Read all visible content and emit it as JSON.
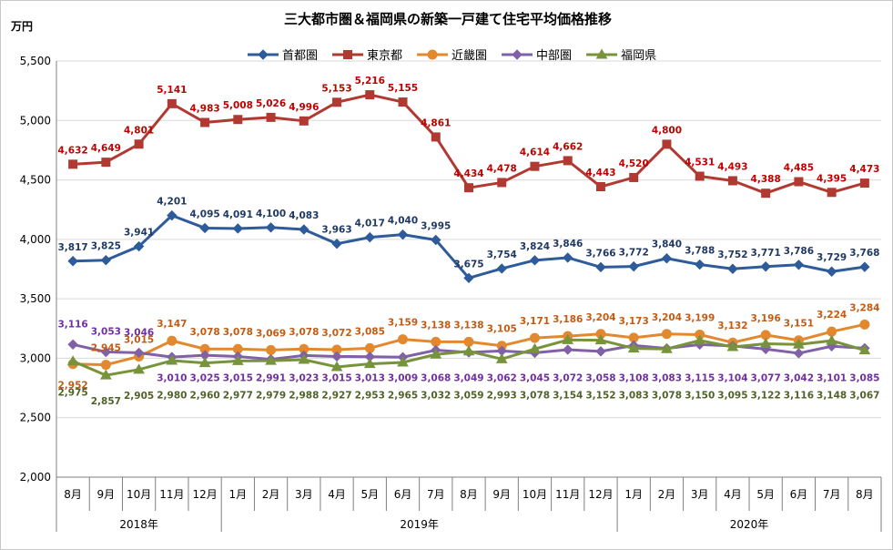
{
  "chart_data": {
    "type": "line",
    "title": "三大都市圏＆福岡県の新築一戸建て住宅平均価格推移",
    "ylabel": "万円",
    "xlabel": "",
    "ylim": [
      2000,
      5500
    ],
    "yticks": [
      "2,000",
      "2,500",
      "3,000",
      "3,500",
      "4,000",
      "4,500",
      "5,000",
      "5,500"
    ],
    "categories": [
      "8月",
      "9月",
      "10月",
      "11月",
      "12月",
      "1月",
      "2月",
      "3月",
      "4月",
      "5月",
      "6月",
      "7月",
      "8月",
      "9月",
      "10月",
      "11月",
      "12月",
      "1月",
      "2月",
      "3月",
      "4月",
      "5月",
      "6月",
      "7月",
      "8月"
    ],
    "year_groups": [
      {
        "label": "2018年",
        "start": 0,
        "end": 4
      },
      {
        "label": "2019年",
        "start": 5,
        "end": 16
      },
      {
        "label": "2020年",
        "start": 17,
        "end": 24
      }
    ],
    "grid": true,
    "legend_position": "top",
    "series": [
      {
        "name": "首都圏",
        "color": "#2e5b9a",
        "label_color": "#1f3864",
        "marker": "diamond",
        "values": [
          3817,
          3825,
          3941,
          4201,
          4095,
          4091,
          4100,
          4083,
          3963,
          4017,
          4040,
          3995,
          3675,
          3754,
          3824,
          3846,
          3766,
          3772,
          3840,
          3788,
          3752,
          3771,
          3786,
          3729,
          3768
        ]
      },
      {
        "name": "東京都",
        "color": "#b03a32",
        "label_color": "#c00000",
        "marker": "square",
        "values": [
          4632,
          4649,
          4801,
          5141,
          4983,
          5008,
          5026,
          4996,
          5153,
          5216,
          5155,
          4861,
          4434,
          4478,
          4614,
          4662,
          4443,
          4520,
          4800,
          4531,
          4493,
          4388,
          4485,
          4395,
          4473
        ]
      },
      {
        "name": "近畿圏",
        "color": "#e2892f",
        "label_color": "#c55a11",
        "marker": "circle",
        "values": [
          2952,
          2945,
          3015,
          3147,
          3078,
          3078,
          3069,
          3078,
          3072,
          3085,
          3159,
          3138,
          3138,
          3105,
          3171,
          3186,
          3204,
          3173,
          3204,
          3199,
          3132,
          3196,
          3151,
          3224,
          3284
        ]
      },
      {
        "name": "中部圏",
        "color": "#8061a6",
        "label_color": "#7030a0",
        "marker": "diamond",
        "values": [
          3116,
          3053,
          3046,
          3010,
          3025,
          3015,
          2991,
          3023,
          3015,
          3013,
          3009,
          3068,
          3049,
          3062,
          3045,
          3072,
          3058,
          3108,
          3083,
          3115,
          3104,
          3077,
          3042,
          3101,
          3085
        ]
      },
      {
        "name": "福岡県",
        "color": "#77933c",
        "label_color": "#4f6228",
        "marker": "triangle",
        "values": [
          2975,
          2857,
          2905,
          2980,
          2960,
          2977,
          2979,
          2988,
          2927,
          2953,
          2965,
          3032,
          3059,
          2993,
          3078,
          3154,
          3152,
          3083,
          3078,
          3150,
          3095,
          3122,
          3116,
          3148,
          3067
        ]
      }
    ],
    "value_labels": {
      "首都圏": [
        "3,817",
        "3,825",
        "3,941",
        "4,201",
        "4,095",
        "4,091",
        "4,100",
        "4,083",
        "3,963",
        "4,017",
        "4,040",
        "3,995",
        "3,675",
        "3,754",
        "3,824",
        "3,846",
        "3,766",
        "3,772",
        "3,840",
        "3,788",
        "3,752",
        "3,771",
        "3,786",
        "3,729",
        "3,768"
      ],
      "東京都": [
        "4,632",
        "4,649",
        "4,801",
        "5,141",
        "4,983",
        "5,008",
        "5,026",
        "4,996",
        "5,153",
        "5,216",
        "5,155",
        "4,861",
        "4,434",
        "4,478",
        "4,614",
        "4,662",
        "4,443",
        "4,520",
        "4,800",
        "4,531",
        "4,493",
        "4,388",
        "4,485",
        "4,395",
        "4,473"
      ],
      "近畿圏": [
        "2,952",
        "2,945",
        "3,015",
        "3,147",
        "3,078",
        "3,078",
        "3,069",
        "3,078",
        "3,072",
        "3,085",
        "3,159",
        "3,138",
        "3,138",
        "3,105",
        "3,171",
        "3,186",
        "3,204",
        "3,173",
        "3,204",
        "3,199",
        "3,132",
        "3,196",
        "3,151",
        "3,224",
        "3,284"
      ],
      "中部圏": [
        "3,116",
        "3,053",
        "3,046",
        "3,010",
        "3,025",
        "3,015",
        "2,991",
        "3,023",
        "3,015",
        "3,013",
        "3,009",
        "3,068",
        "3,049",
        "3,062",
        "3,045",
        "3,072",
        "3,058",
        "3,108",
        "3,083",
        "3,115",
        "3,104",
        "3,077",
        "3,042",
        "3,101",
        "3,085"
      ],
      "福岡県": [
        "2,975",
        "2,857",
        "2,905",
        "2,980",
        "2,960",
        "2,977",
        "2,979",
        "2,988",
        "2,927",
        "2,953",
        "2,965",
        "3,032",
        "3,059",
        "2,993",
        "3,078",
        "3,154",
        "3,152",
        "3,083",
        "3,078",
        "3,150",
        "3,095",
        "3,122",
        "3,116",
        "3,148",
        "3,067"
      ]
    }
  }
}
